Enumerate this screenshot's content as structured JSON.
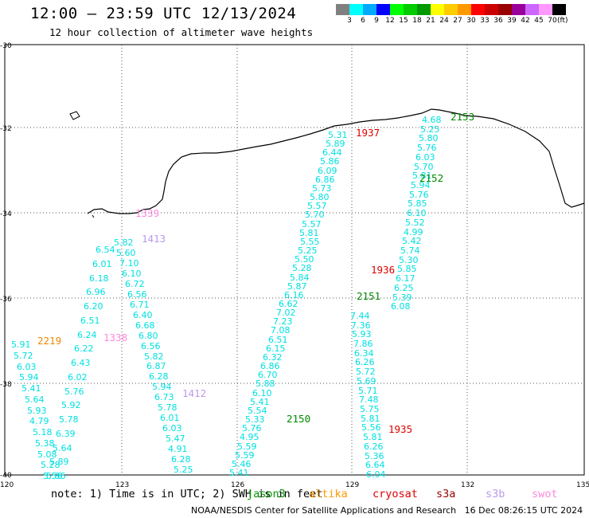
{
  "header": {
    "title": "12:00 — 23:59 UTC 12/13/2024",
    "subtitle": "12 hour collection of altimeter wave heights"
  },
  "colorbar": {
    "unit": "(ft)",
    "colors": [
      "#808080",
      "#00ffff",
      "#00aaff",
      "#0000ff",
      "#00ff00",
      "#00cc00",
      "#009900",
      "#ffff00",
      "#ffcc00",
      "#ff9900",
      "#ff0000",
      "#cc0000",
      "#990000",
      "#990099",
      "#cc66ff",
      "#ff99ff",
      "#000000"
    ],
    "labels": [
      "3",
      "6",
      "9",
      "12",
      "15",
      "18",
      "21",
      "24",
      "27",
      "30",
      "33",
      "36",
      "39",
      "42",
      "45",
      "70"
    ]
  },
  "axes": {
    "lat_labels": [
      "-30",
      "-32",
      "-34",
      "-36",
      "-38",
      "-40"
    ],
    "lon_labels": [
      "120",
      "123",
      "126",
      "129",
      "132",
      "135"
    ]
  },
  "tracks": [
    {
      "values": [
        "5.91",
        "5.72",
        "6.03",
        "5.94",
        "5.41",
        "5.64",
        "5.93",
        "4.79",
        "5.18",
        "5.38",
        "5.08",
        "5.28",
        "5.56"
      ]
    },
    {
      "values": [
        "6.54",
        "6.01",
        "6.18",
        "6.96",
        "6.20",
        "6.51",
        "6.24",
        "6.22",
        "6.43",
        "6.02",
        "5.76",
        "5.92",
        "5.78",
        "6.39",
        "5.64",
        "5.89",
        "5.06"
      ]
    },
    {
      "values": [
        "5.82",
        "5.60",
        "7.10",
        "6.10",
        "6.72",
        "6.56",
        "6.71",
        "6.40",
        "6.68",
        "6.80",
        "6.56",
        "5.82",
        "6.87",
        "6.28",
        "5.94",
        "6.73",
        "5.78",
        "6.01",
        "6.03",
        "5.47",
        "4.91",
        "6.28",
        "5.25"
      ]
    },
    {
      "values": [
        "5.31",
        "5.89",
        "6.44",
        "5.86",
        "6.09",
        "6.86",
        "5.73",
        "5.80",
        "5.57",
        "5.70",
        "5.57",
        "5.81",
        "5.55",
        "5.25",
        "5.50",
        "5.28",
        "5.84",
        "5.87",
        "6.16",
        "6.62",
        "7.02",
        "7.23",
        "7.08",
        "6.51",
        "6.15",
        "6.32",
        "6.86",
        "6.70",
        "5.88",
        "6.10",
        "5.41",
        "5.54",
        "5.33",
        "5.76",
        "4.95",
        "5.59",
        "5.59",
        "5.46",
        "5.41"
      ]
    },
    {
      "values": [
        "4.68",
        "5.25",
        "5.80",
        "5.76",
        "6.03",
        "5.70",
        "5.81",
        "5.94",
        "5.76",
        "5.85",
        "6.10",
        "5.52",
        "4.99",
        "5.42",
        "5.74",
        "5.30",
        "5.85",
        "6.17",
        "6.25",
        "5.39",
        "6.08",
        "7.44",
        "7.36",
        "5.93",
        "7.86",
        "6.34",
        "6.26",
        "5.72",
        "5.69",
        "5.71",
        "7.48",
        "5.75",
        "5.81",
        "5.56",
        "5.81",
        "6.26",
        "5.36",
        "6.64",
        "6.04"
      ]
    }
  ],
  "passes": [
    {
      "label": "1937",
      "color": "#dd0000"
    },
    {
      "label": "2153",
      "color": "#008800"
    },
    {
      "label": "2152",
      "color": "#008800"
    },
    {
      "label": "1339",
      "color": "#ff88dd"
    },
    {
      "label": "1413",
      "color": "#bb99ee"
    },
    {
      "label": "1936",
      "color": "#dd0000"
    },
    {
      "label": "2151",
      "color": "#008800"
    },
    {
      "label": "2219",
      "color": "#ee8800"
    },
    {
      "label": "1338",
      "color": "#ff88dd"
    },
    {
      "label": "1412",
      "color": "#bb99ee"
    },
    {
      "label": "2150",
      "color": "#008800"
    },
    {
      "label": "1935",
      "color": "#dd0000"
    }
  ],
  "footer": {
    "note": "note: 1) Time is in UTC; 2) SWH is in feet",
    "legend": [
      {
        "label": "jason3",
        "color": "#009900"
      },
      {
        "label": "altika",
        "color": "#ff9900"
      },
      {
        "label": "cryosat",
        "color": "#dd0000"
      },
      {
        "label": "s3a",
        "color": "#990000"
      },
      {
        "label": "s3b",
        "color": "#bb99ee"
      },
      {
        "label": "swot",
        "color": "#ff88dd"
      }
    ],
    "credit": "NOAA/NESDIS Center for Satellite Applications and Research   16 Dec 08:26:15 UTC 2024"
  }
}
